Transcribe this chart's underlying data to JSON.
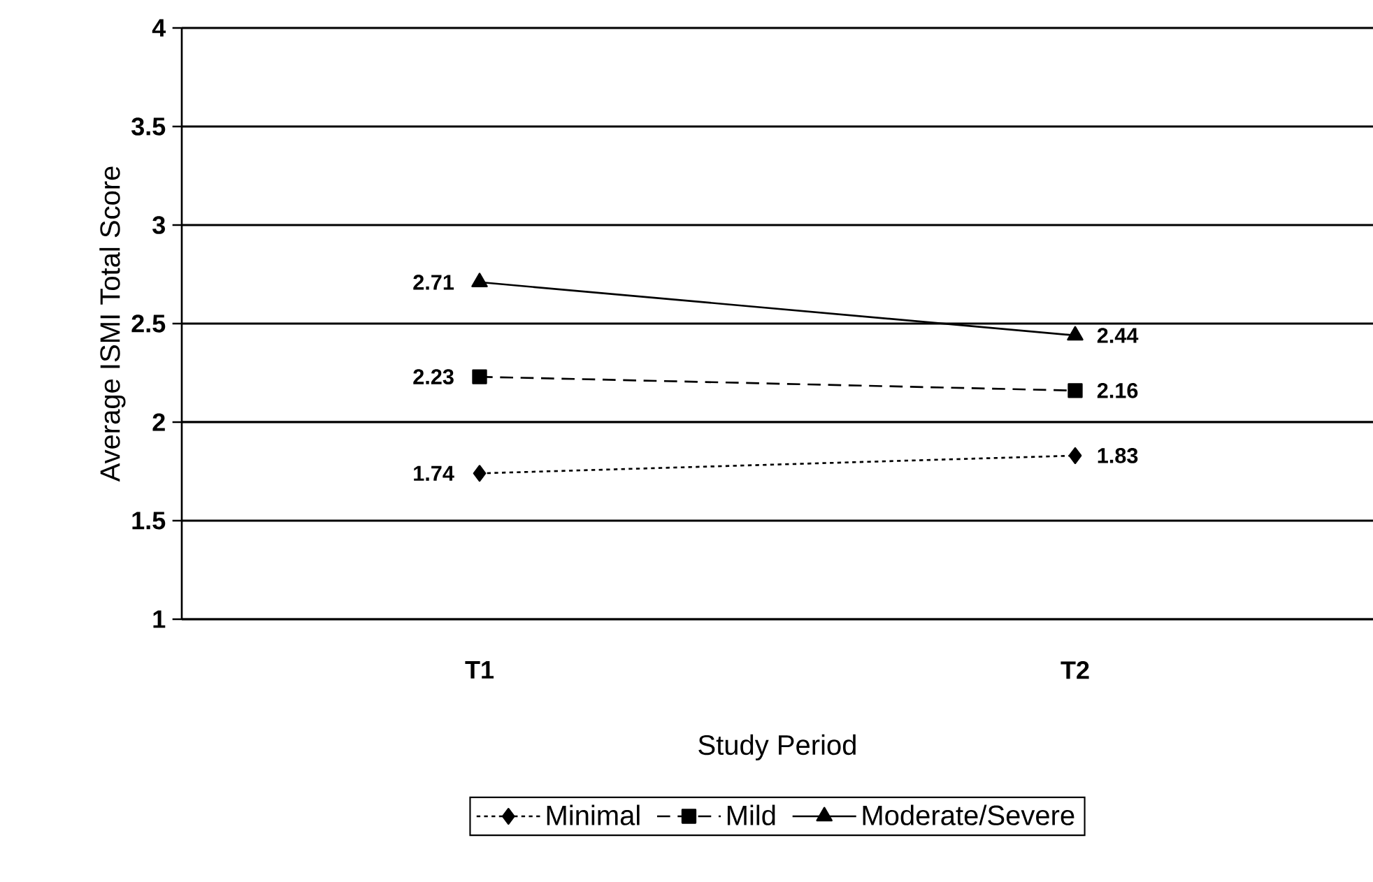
{
  "chart_data": {
    "type": "line",
    "xlabel": "Study Period",
    "ylabel": "Average ISMI Total Score",
    "categories": [
      "T1",
      "T2"
    ],
    "series": [
      {
        "name": "Minimal",
        "color": "#000000",
        "values": [
          1.74,
          1.83
        ],
        "marker": "diamond",
        "line_style": "dotted"
      },
      {
        "name": "Mild",
        "color": "#000000",
        "values": [
          2.23,
          2.16
        ],
        "marker": "square",
        "line_style": "dashed"
      },
      {
        "name": "Moderate/Severe",
        "color": "#000000",
        "values": [
          2.71,
          2.44
        ],
        "marker": "triangle",
        "line_style": "solid"
      }
    ],
    "ylim": [
      1,
      4
    ],
    "yticks": [
      1,
      1.5,
      2,
      2.5,
      3,
      3.5,
      4
    ],
    "grid": "y",
    "legend": "bottom",
    "data_labels": true
  }
}
